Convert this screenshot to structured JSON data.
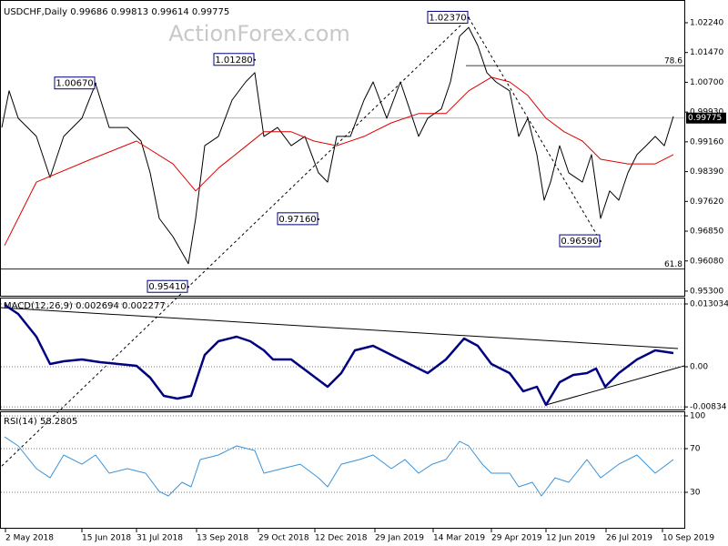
{
  "watermark": "ActionForex.com",
  "chart_data": [
    {
      "type": "line",
      "title": "USDCHF,Daily  0.99686 0.99813 0.99614 0.99775",
      "xlim": [
        0,
        376
      ],
      "ylim": [
        0.9518,
        1.0271
      ],
      "grid": false,
      "yticks": [
        {
          "value": 1.0224,
          "label": "1.02240"
        },
        {
          "value": 1.0147,
          "label": "1.01470"
        },
        {
          "value": 1.007,
          "label": "1.00700"
        },
        {
          "value": 0.9993,
          "label": "0.99930"
        },
        {
          "value": 0.9916,
          "label": "0.99160"
        },
        {
          "value": 0.9839,
          "label": "0.98390"
        },
        {
          "value": 0.9762,
          "label": "0.97620"
        },
        {
          "value": 0.9685,
          "label": "0.96850"
        },
        {
          "value": 0.9608,
          "label": "0.96080"
        },
        {
          "value": 0.953,
          "label": "0.95300"
        }
      ],
      "series": [
        {
          "color": "#000000",
          "width": 1,
          "x": [
            1,
            5,
            10,
            20,
            27.5,
            35,
            45,
            52.5,
            60,
            70,
            77.5,
            82.5,
            87.5,
            95,
            103.5,
            107.5,
            112.5,
            120,
            127.5,
            135,
            140,
            145,
            152.5,
            160,
            167.5,
            175,
            180,
            185,
            192.5,
            200,
            205,
            212.5,
            220,
            225,
            230,
            235,
            242.5,
            247.5,
            252.5,
            257.5,
            262.5,
            267.5,
            272.5,
            280,
            285,
            290,
            295,
            299,
            302.5,
            307.5,
            312.5,
            320,
            325,
            330,
            335,
            340,
            345,
            350,
            355,
            360,
            365,
            370
          ],
          "values": [
            0.9953,
            1.0048,
            0.9977,
            0.993,
            0.9824,
            0.993,
            0.9977,
            1.0066,
            0.9953,
            0.9953,
            0.9918,
            0.9836,
            0.9718,
            0.9671,
            0.9601,
            0.9718,
            0.9906,
            0.993,
            1.0024,
            1.0071,
            1.0095,
            0.993,
            0.9953,
            0.9906,
            0.993,
            0.9836,
            0.9812,
            0.993,
            0.993,
            1.0024,
            1.0071,
            0.9977,
            1.0071,
            1.0001,
            0.993,
            0.9977,
            1.0001,
            1.0071,
            1.0189,
            1.0212,
            1.0165,
            1.0095,
            1.0071,
            1.0048,
            0.993,
            0.9977,
            0.9883,
            0.9765,
            0.9812,
            0.9906,
            0.9836,
            0.9812,
            0.9883,
            0.9718,
            0.9789,
            0.9765,
            0.9836,
            0.9883,
            0.9906,
            0.993,
            0.9906,
            0.9982
          ]
        },
        {
          "color": "#e00000",
          "width": 1,
          "x": [
            2.5,
            20,
            50,
            75,
            95,
            107.5,
            120,
            132.5,
            145,
            160,
            172.5,
            185,
            200,
            215,
            230,
            245,
            257.5,
            270,
            280,
            290,
            300,
            310,
            320,
            330,
            345,
            360,
            370
          ],
          "values": [
            0.9648,
            0.9812,
            0.9871,
            0.9918,
            0.9859,
            0.9789,
            0.9848,
            0.9895,
            0.9942,
            0.9942,
            0.9918,
            0.9906,
            0.993,
            0.9965,
            0.9989,
            0.9989,
            1.0048,
            1.0083,
            1.0071,
            1.0036,
            0.9977,
            0.9942,
            0.9918,
            0.9871,
            0.9859,
            0.9859,
            0.9883
          ]
        }
      ],
      "annotations": [
        {
          "x": 52.5,
          "value": 1.0067,
          "label": "1.00670"
        },
        {
          "x": 140,
          "value": 1.0128,
          "label": "1.01280"
        },
        {
          "x": 103.5,
          "value": 0.9541,
          "label": "0.95410"
        },
        {
          "x": 175,
          "value": 0.9716,
          "label": "0.97160"
        },
        {
          "x": 257.5,
          "value": 1.0237,
          "label": "1.02370"
        },
        {
          "x": 330,
          "value": 0.9659,
          "label": "0.96590"
        }
      ],
      "levels": [
        {
          "value": 1.0113,
          "label": "78.6"
        },
        {
          "value": 0.9587,
          "label": "61.8"
        }
      ],
      "current_price": {
        "value": 0.99775,
        "label": "0.99775"
      }
    },
    {
      "type": "line",
      "title": "MACD(12,26,9) 0.002694 0.002277",
      "xlim": [
        0,
        376
      ],
      "ylim": [
        -0.00888,
        0.01417
      ],
      "grid": true,
      "yticks": [
        0.013034,
        {
          "value": 0,
          "label": "0.00"
        },
        -0.00834
      ],
      "series": [
        {
          "color": "#000080",
          "width": 2.5,
          "x": [
            2.5,
            10,
            20,
            27.5,
            35,
            45,
            55,
            65,
            75,
            82.5,
            90,
            97.5,
            105,
            112.5,
            120,
            130,
            137.5,
            145,
            150,
            160,
            170,
            180,
            187.5,
            195,
            205,
            215,
            225,
            235,
            245,
            255,
            262.5,
            270,
            280,
            287.5,
            295,
            300,
            307.5,
            315,
            322.5,
            327.5,
            332.5,
            340,
            350,
            360,
            370
          ],
          "values": [
            0.01284,
            0.01096,
            0.00623,
            0.00057,
            0.00113,
            0.00151,
            0.00094,
            0.00057,
            0.00019,
            -0.00227,
            -0.00604,
            -0.00661,
            -0.00604,
            0.00246,
            0.00529,
            0.00623,
            0.00529,
            0.0034,
            0.00151,
            0.00151,
            -0.00132,
            -0.00416,
            -0.00132,
            0.0034,
            0.00434,
            0.00246,
            0.00057,
            -0.00132,
            0.00151,
            0.00586,
            0.00434,
            0.00057,
            -0.00132,
            -0.0051,
            -0.00416,
            -0.00793,
            -0.00321,
            -0.0017,
            -0.00132,
            -0.00038,
            -0.00416,
            -0.00132,
            0.00151,
            0.0034,
            0.00283
          ]
        }
      ]
    },
    {
      "type": "line",
      "title": "RSI(14) 58.2805",
      "xlim": [
        0,
        376
      ],
      "ylim": [
        -2.5,
        101.7
      ],
      "grid": true,
      "yticks": [
        100,
        70,
        30
      ],
      "xticks": [
        {
          "value": 3,
          "label": "2 May 2018"
        },
        {
          "value": 45,
          "label": "15 Jun 2018"
        },
        {
          "value": 75,
          "label": "31 Jul 2018"
        },
        {
          "value": 108,
          "label": "13 Sep 2018"
        },
        {
          "value": 142,
          "label": "29 Oct 2018"
        },
        {
          "value": 173,
          "label": "12 Dec 2018"
        },
        {
          "value": 206,
          "label": "29 Jan 2019"
        },
        {
          "value": 238,
          "label": "14 Mar 2019"
        },
        {
          "value": 270,
          "label": "29 Apr 2019"
        },
        {
          "value": 300,
          "label": "12 Jun 2019"
        },
        {
          "value": 333,
          "label": "26 Jul 2019"
        },
        {
          "value": 364,
          "label": "10 Sep 2019"
        }
      ],
      "series": [
        {
          "color": "#3a93d8",
          "width": 1,
          "x": [
            2.5,
            10,
            20,
            27.5,
            35,
            45,
            52.5,
            60,
            70,
            80,
            87.5,
            92.5,
            100,
            105,
            110,
            120,
            130,
            140,
            145,
            155,
            165,
            175,
            180,
            187.5,
            197.5,
            205,
            215,
            222.5,
            230,
            237.5,
            245,
            252.5,
            257.5,
            265,
            270,
            280,
            285,
            292.5,
            297.5,
            305,
            312.5,
            322.5,
            330,
            340,
            350,
            360,
            370
          ],
          "values": [
            80.8,
            72.5,
            51.7,
            43.3,
            64.2,
            55.8,
            64.2,
            47.5,
            51.7,
            47.5,
            30.8,
            26.7,
            39.2,
            35,
            60,
            64.2,
            72.5,
            68.3,
            47.5,
            51.7,
            55.8,
            43.3,
            35,
            55.8,
            60,
            64.2,
            51.7,
            60,
            47.5,
            55.8,
            60,
            76.7,
            72.5,
            55.8,
            47.5,
            47.5,
            35,
            39.2,
            26.7,
            43.3,
            39.2,
            60,
            43.3,
            55.8,
            64.2,
            47.5,
            60
          ]
        }
      ]
    }
  ]
}
